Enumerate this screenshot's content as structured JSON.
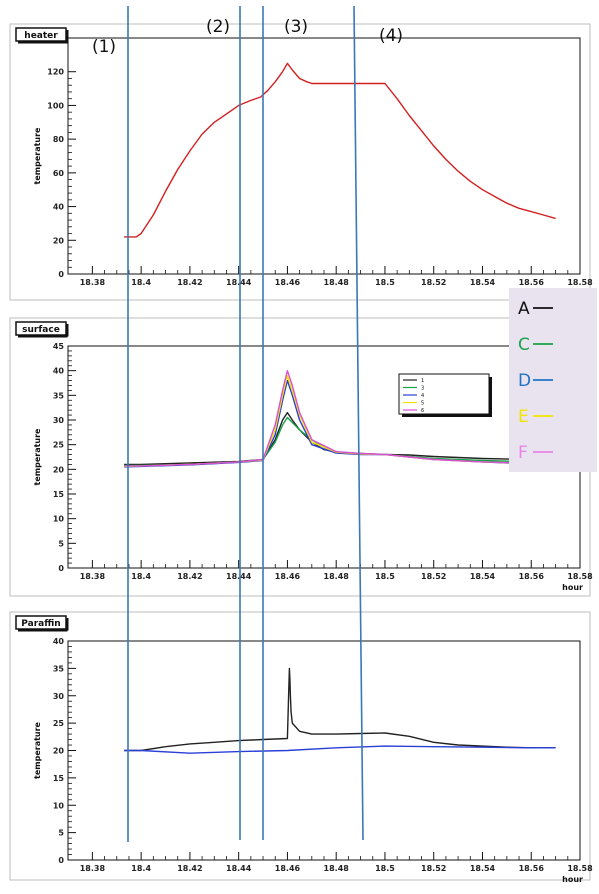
{
  "phase_labels": [
    "(1)",
    "(2)",
    "(3)",
    "(4)"
  ],
  "side_legend": [
    {
      "letter": "A",
      "color": "#111111"
    },
    {
      "letter": "C",
      "color": "#19a34a"
    },
    {
      "letter": "D",
      "color": "#1f74c4"
    },
    {
      "letter": "E",
      "color": "#f2e600"
    },
    {
      "letter": "F",
      "color": "#e985e6"
    }
  ],
  "chart_data": [
    {
      "type": "line",
      "title": "heater",
      "xlabel": "",
      "ylabel": "temperature",
      "xlim": [
        18.37,
        18.58
      ],
      "ylim": [
        0,
        140
      ],
      "xticks": [
        "18.38",
        "18.4",
        "18.42",
        "18.44",
        "18.46",
        "18.48",
        "18.5",
        "18.52",
        "18.54",
        "18.56",
        "18.58"
      ],
      "yticks": [
        "0",
        "20",
        "40",
        "60",
        "80",
        "100",
        "120"
      ],
      "series": [
        {
          "color": "#d22020",
          "x": [
            18.393,
            18.398,
            18.4,
            18.405,
            18.41,
            18.415,
            18.42,
            18.425,
            18.43,
            18.435,
            18.44,
            18.445,
            18.449,
            18.452,
            18.455,
            18.458,
            18.46,
            18.462,
            18.465,
            18.468,
            18.47,
            18.475,
            18.48,
            18.485,
            18.49,
            18.495,
            18.5,
            18.505,
            18.51,
            18.515,
            18.52,
            18.525,
            18.53,
            18.535,
            18.54,
            18.545,
            18.55,
            18.555,
            18.56,
            18.565,
            18.57
          ],
          "y": [
            22,
            22,
            24,
            35,
            49,
            62,
            73,
            83,
            90,
            95,
            100,
            103,
            105,
            109,
            114,
            120,
            125,
            121,
            116,
            114,
            113,
            113,
            113,
            113,
            113,
            113,
            113,
            104,
            94,
            85,
            76,
            68,
            61,
            55,
            50,
            46,
            42,
            39,
            37,
            35,
            33
          ]
        }
      ]
    },
    {
      "type": "line",
      "title": "surface",
      "xlabel": "hour",
      "ylabel": "temperature",
      "xlim": [
        18.37,
        18.58
      ],
      "ylim": [
        0,
        45
      ],
      "xticks": [
        "18.38",
        "18.4",
        "18.42",
        "18.44",
        "18.46",
        "18.48",
        "18.5",
        "18.52",
        "18.54",
        "18.56",
        "18.58"
      ],
      "yticks": [
        "0",
        "5",
        "10",
        "15",
        "20",
        "25",
        "30",
        "35",
        "40",
        "45"
      ],
      "legend": "top-right",
      "series": [
        {
          "name": "1",
          "color": "#222222",
          "x": [
            18.393,
            18.4,
            18.42,
            18.44,
            18.45,
            18.455,
            18.458,
            18.46,
            18.462,
            18.465,
            18.468,
            18.47,
            18.475,
            18.48,
            18.49,
            18.5,
            18.51,
            18.52,
            18.54,
            18.56,
            18.57
          ],
          "y": [
            21,
            21,
            21.3,
            21.6,
            22,
            26,
            30,
            31.5,
            30,
            28,
            26.5,
            25.5,
            24,
            23.5,
            23.2,
            23,
            22.9,
            22.6,
            22.2,
            22,
            21.8
          ]
        },
        {
          "name": "3",
          "color": "#19a34a",
          "x": [
            18.393,
            18.4,
            18.42,
            18.44,
            18.45,
            18.455,
            18.458,
            18.46,
            18.462,
            18.465,
            18.468,
            18.47,
            18.475,
            18.48,
            18.49,
            18.5,
            18.51,
            18.52,
            18.54,
            18.56,
            18.57
          ],
          "y": [
            20.8,
            20.8,
            21,
            21.5,
            22,
            25.5,
            29,
            30.5,
            29.5,
            28,
            26.8,
            26,
            24.5,
            23.5,
            23.1,
            23,
            22.6,
            22.2,
            21.8,
            21.5,
            21.3
          ]
        },
        {
          "name": "4",
          "color": "#2a3fd8",
          "x": [
            18.393,
            18.4,
            18.42,
            18.44,
            18.45,
            18.455,
            18.458,
            18.46,
            18.462,
            18.465,
            18.47,
            18.48,
            18.49,
            18.5,
            18.51,
            18.52,
            18.54,
            18.56,
            18.57
          ],
          "y": [
            20.5,
            20.6,
            20.9,
            21.4,
            21.8,
            27,
            34,
            38,
            35,
            30,
            25,
            23.3,
            23,
            23,
            22.5,
            22,
            21.5,
            21.1,
            21
          ]
        },
        {
          "name": "5",
          "color": "#f2e600",
          "x": [
            18.393,
            18.4,
            18.42,
            18.44,
            18.45,
            18.455,
            18.458,
            18.46,
            18.462,
            18.465,
            18.47,
            18.48,
            18.49,
            18.5,
            18.51,
            18.52,
            18.54,
            18.56,
            18.57
          ],
          "y": [
            20.6,
            20.7,
            21,
            21.5,
            21.9,
            28,
            35,
            39,
            36,
            31,
            25.5,
            23.5,
            23.1,
            23,
            22.5,
            22,
            21.5,
            21.2,
            21
          ]
        },
        {
          "name": "6",
          "color": "#d84fd8",
          "x": [
            18.393,
            18.4,
            18.42,
            18.44,
            18.45,
            18.455,
            18.458,
            18.46,
            18.462,
            18.465,
            18.47,
            18.48,
            18.49,
            18.5,
            18.51,
            18.52,
            18.54,
            18.56,
            18.57
          ],
          "y": [
            20.7,
            20.7,
            21,
            21.5,
            22,
            29,
            36,
            40,
            37,
            31.5,
            26,
            23.6,
            23.2,
            23,
            22.5,
            22,
            21.5,
            21.2,
            21
          ]
        }
      ]
    },
    {
      "type": "line",
      "title": "Paraffin",
      "xlabel": "hour",
      "ylabel": "temperature",
      "xlim": [
        18.37,
        18.58
      ],
      "ylim": [
        0,
        40
      ],
      "xticks": [
        "18.38",
        "18.4",
        "18.42",
        "18.44",
        "18.46",
        "18.48",
        "18.5",
        "18.52",
        "18.54",
        "18.56",
        "18.58"
      ],
      "yticks": [
        "0",
        "5",
        "10",
        "15",
        "20",
        "25",
        "30",
        "35",
        "40"
      ],
      "series": [
        {
          "color": "#222222",
          "x": [
            18.393,
            18.4,
            18.41,
            18.42,
            18.43,
            18.44,
            18.45,
            18.46,
            18.4605,
            18.4608,
            18.461,
            18.4612,
            18.4615,
            18.462,
            18.465,
            18.47,
            18.48,
            18.49,
            18.5,
            18.51,
            18.52,
            18.53,
            18.54,
            18.55,
            18.56,
            18.57
          ],
          "y": [
            20,
            20,
            20.7,
            21.2,
            21.5,
            21.8,
            22,
            22.2,
            30,
            35,
            33,
            30,
            27,
            25,
            23.5,
            23,
            23,
            23.1,
            23.2,
            22.6,
            21.5,
            21,
            20.8,
            20.6,
            20.5,
            20.5
          ]
        },
        {
          "color": "#2a3fd8",
          "x": [
            18.393,
            18.4,
            18.42,
            18.44,
            18.46,
            18.48,
            18.5,
            18.52,
            18.54,
            18.56,
            18.57
          ],
          "y": [
            20,
            20,
            19.5,
            19.8,
            20,
            20.5,
            20.8,
            20.7,
            20.6,
            20.5,
            20.5
          ]
        }
      ]
    }
  ]
}
